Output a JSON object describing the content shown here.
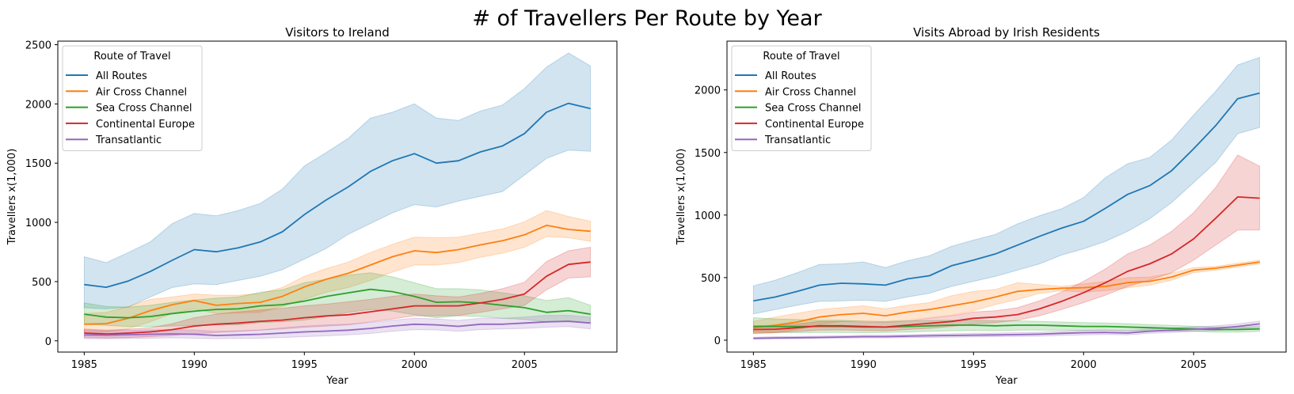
{
  "figure": {
    "suptitle": "# of Travellers Per Route by Year"
  },
  "chart_data": [
    {
      "type": "line",
      "title": "Visitors to Ireland",
      "xlabel": "Year",
      "ylabel": "Travellers x(1,000)",
      "xlim": [
        1983.8,
        2009.2
      ],
      "ylim": [
        -95,
        2530
      ],
      "xticks": [
        1985,
        1990,
        1995,
        2000,
        2005
      ],
      "yticks": [
        0,
        500,
        1000,
        1500,
        2000,
        2500
      ],
      "grid": false,
      "legend": {
        "title": "Route of Travel",
        "position": "top-left"
      },
      "x": [
        1985,
        1986,
        1987,
        1988,
        1989,
        1990,
        1991,
        1992,
        1993,
        1994,
        1995,
        1996,
        1997,
        1998,
        1999,
        2000,
        2001,
        2002,
        2003,
        2004,
        2005,
        2006,
        2007,
        2008
      ],
      "series": [
        {
          "name": "All Routes",
          "color": "#1f77b4",
          "values": [
            475,
            452,
            505,
            585,
            680,
            770,
            752,
            785,
            835,
            920,
            1065,
            1190,
            1300,
            1430,
            1520,
            1580,
            1500,
            1520,
            1595,
            1645,
            1750,
            1930,
            2005,
            1960
          ],
          "lower": [
            280,
            270,
            285,
            370,
            450,
            480,
            475,
            510,
            545,
            600,
            690,
            780,
            900,
            990,
            1080,
            1150,
            1130,
            1180,
            1220,
            1260,
            1400,
            1540,
            1610,
            1600
          ],
          "upper": [
            710,
            660,
            745,
            835,
            990,
            1075,
            1055,
            1100,
            1160,
            1280,
            1475,
            1590,
            1710,
            1880,
            1930,
            2000,
            1880,
            1860,
            1940,
            1990,
            2130,
            2310,
            2430,
            2320
          ]
        },
        {
          "name": "Air Cross Channel",
          "color": "#ff7f0e",
          "values": [
            140,
            145,
            190,
            255,
            305,
            340,
            300,
            315,
            325,
            375,
            455,
            520,
            570,
            640,
            710,
            760,
            745,
            770,
            810,
            845,
            895,
            975,
            940,
            925
          ],
          "lower": [
            70,
            72,
            100,
            160,
            230,
            270,
            230,
            235,
            240,
            290,
            350,
            410,
            450,
            510,
            580,
            640,
            640,
            660,
            705,
            740,
            790,
            880,
            870,
            840
          ],
          "upper": [
            230,
            240,
            290,
            350,
            370,
            395,
            385,
            385,
            400,
            450,
            545,
            610,
            665,
            745,
            815,
            875,
            870,
            875,
            910,
            945,
            1005,
            1100,
            1050,
            1010
          ]
        },
        {
          "name": "Sea Cross Channel",
          "color": "#2ca02c",
          "values": [
            225,
            200,
            195,
            205,
            230,
            250,
            265,
            270,
            295,
            305,
            335,
            375,
            405,
            435,
            415,
            375,
            325,
            330,
            320,
            300,
            280,
            240,
            255,
            225
          ],
          "lower": [
            140,
            130,
            120,
            120,
            125,
            130,
            135,
            135,
            155,
            160,
            175,
            205,
            240,
            265,
            250,
            220,
            195,
            210,
            205,
            190,
            180,
            160,
            170,
            150
          ],
          "upper": [
            320,
            290,
            285,
            300,
            325,
            345,
            360,
            370,
            410,
            430,
            490,
            520,
            555,
            575,
            540,
            490,
            440,
            440,
            430,
            405,
            380,
            340,
            365,
            300
          ]
        },
        {
          "name": "Continental Europe",
          "color": "#d62728",
          "values": [
            65,
            58,
            65,
            75,
            95,
            125,
            140,
            150,
            165,
            175,
            195,
            210,
            220,
            245,
            270,
            295,
            295,
            295,
            320,
            350,
            395,
            545,
            645,
            665
          ],
          "lower": [
            28,
            24,
            28,
            35,
            45,
            60,
            70,
            80,
            90,
            100,
            115,
            125,
            135,
            160,
            185,
            210,
            210,
            215,
            240,
            270,
            300,
            430,
            530,
            540
          ],
          "upper": [
            100,
            90,
            98,
            110,
            145,
            195,
            225,
            245,
            260,
            275,
            295,
            310,
            330,
            350,
            375,
            395,
            380,
            370,
            400,
            440,
            495,
            670,
            760,
            790
          ]
        },
        {
          "name": "Transatlantic",
          "color": "#9467bd",
          "values": [
            50,
            48,
            52,
            55,
            58,
            55,
            45,
            50,
            55,
            65,
            75,
            82,
            90,
            105,
            125,
            140,
            135,
            122,
            140,
            140,
            150,
            160,
            165,
            150
          ],
          "lower": [
            18,
            18,
            20,
            22,
            25,
            22,
            18,
            20,
            22,
            28,
            35,
            42,
            50,
            62,
            80,
            95,
            92,
            80,
            95,
            100,
            105,
            115,
            120,
            100
          ],
          "upper": [
            90,
            85,
            88,
            92,
            95,
            92,
            80,
            85,
            92,
            110,
            125,
            135,
            140,
            155,
            175,
            190,
            185,
            172,
            190,
            190,
            200,
            215,
            215,
            200
          ]
        }
      ]
    },
    {
      "type": "line",
      "title": "Visits Abroad by Irish Residents",
      "xlabel": "Year",
      "ylabel": "Travellers x(1,000)",
      "xlim": [
        1983.8,
        2009.2
      ],
      "ylim": [
        -95,
        2390
      ],
      "xticks": [
        1985,
        1990,
        1995,
        2000,
        2005
      ],
      "yticks": [
        0,
        500,
        1000,
        1500,
        2000
      ],
      "grid": false,
      "legend": {
        "title": "Route of Travel",
        "position": "top-left"
      },
      "x": [
        1985,
        1986,
        1987,
        1988,
        1989,
        1990,
        1991,
        1992,
        1993,
        1994,
        1995,
        1996,
        1997,
        1998,
        1999,
        2000,
        2001,
        2002,
        2003,
        2004,
        2005,
        2006,
        2007,
        2008
      ],
      "series": [
        {
          "name": "All Routes",
          "color": "#1f77b4",
          "values": [
            315,
            345,
            390,
            440,
            455,
            450,
            440,
            490,
            515,
            595,
            640,
            690,
            760,
            830,
            895,
            950,
            1055,
            1165,
            1235,
            1355,
            1530,
            1715,
            1930,
            1975
          ],
          "lower": [
            210,
            245,
            280,
            310,
            315,
            320,
            310,
            345,
            375,
            430,
            470,
            510,
            560,
            610,
            680,
            730,
            790,
            870,
            970,
            1100,
            1260,
            1420,
            1650,
            1700
          ],
          "upper": [
            435,
            480,
            540,
            605,
            610,
            625,
            580,
            635,
            675,
            750,
            800,
            845,
            930,
            995,
            1050,
            1140,
            1300,
            1410,
            1460,
            1600,
            1800,
            1990,
            2200,
            2260
          ]
        },
        {
          "name": "Air Cross Channel",
          "color": "#ff7f0e",
          "values": [
            100,
            120,
            145,
            185,
            205,
            215,
            195,
            225,
            245,
            275,
            305,
            345,
            390,
            405,
            415,
            420,
            430,
            460,
            470,
            505,
            560,
            575,
            600,
            625
          ],
          "lower": [
            50,
            60,
            85,
            125,
            150,
            155,
            145,
            165,
            180,
            200,
            235,
            285,
            325,
            375,
            395,
            385,
            395,
            420,
            440,
            480,
            540,
            560,
            585,
            610
          ],
          "upper": [
            150,
            185,
            215,
            245,
            260,
            275,
            250,
            280,
            300,
            355,
            390,
            405,
            460,
            445,
            430,
            450,
            470,
            500,
            505,
            535,
            580,
            590,
            615,
            640
          ]
        },
        {
          "name": "Sea Cross Channel",
          "color": "#2ca02c",
          "values": [
            110,
            110,
            110,
            110,
            110,
            105,
            105,
            110,
            115,
            120,
            120,
            115,
            120,
            120,
            115,
            110,
            110,
            105,
            100,
            95,
            90,
            85,
            85,
            90
          ],
          "lower": [
            65,
            62,
            60,
            62,
            62,
            60,
            62,
            65,
            70,
            75,
            78,
            75,
            80,
            80,
            80,
            78,
            80,
            78,
            76,
            72,
            70,
            65,
            65,
            70
          ],
          "upper": [
            180,
            170,
            165,
            160,
            160,
            152,
            150,
            155,
            158,
            160,
            160,
            155,
            155,
            150,
            145,
            140,
            138,
            132,
            125,
            118,
            112,
            105,
            105,
            108
          ]
        },
        {
          "name": "Continental Europe",
          "color": "#d62728",
          "values": [
            85,
            88,
            100,
            115,
            115,
            110,
            105,
            120,
            135,
            150,
            175,
            185,
            205,
            250,
            310,
            380,
            460,
            550,
            610,
            690,
            810,
            975,
            1145,
            1135
          ],
          "lower": [
            55,
            60,
            70,
            80,
            82,
            78,
            75,
            85,
            95,
            110,
            130,
            140,
            160,
            195,
            245,
            300,
            360,
            430,
            480,
            540,
            640,
            760,
            880,
            880
          ],
          "upper": [
            115,
            118,
            130,
            150,
            150,
            145,
            140,
            155,
            175,
            195,
            225,
            235,
            260,
            315,
            385,
            470,
            570,
            690,
            760,
            870,
            1020,
            1220,
            1480,
            1390
          ]
        },
        {
          "name": "Transatlantic",
          "color": "#9467bd",
          "values": [
            15,
            18,
            20,
            22,
            25,
            28,
            28,
            32,
            35,
            38,
            40,
            42,
            45,
            48,
            55,
            60,
            62,
            58,
            72,
            80,
            88,
            95,
            110,
            130
          ],
          "lower": [
            8,
            10,
            12,
            14,
            16,
            18,
            18,
            20,
            22,
            24,
            26,
            28,
            30,
            32,
            38,
            42,
            45,
            42,
            55,
            62,
            70,
            78,
            90,
            108
          ],
          "upper": [
            24,
            28,
            30,
            32,
            36,
            40,
            40,
            45,
            48,
            52,
            55,
            57,
            60,
            64,
            72,
            78,
            80,
            75,
            90,
            98,
            106,
            115,
            130,
            152
          ]
        }
      ]
    }
  ]
}
